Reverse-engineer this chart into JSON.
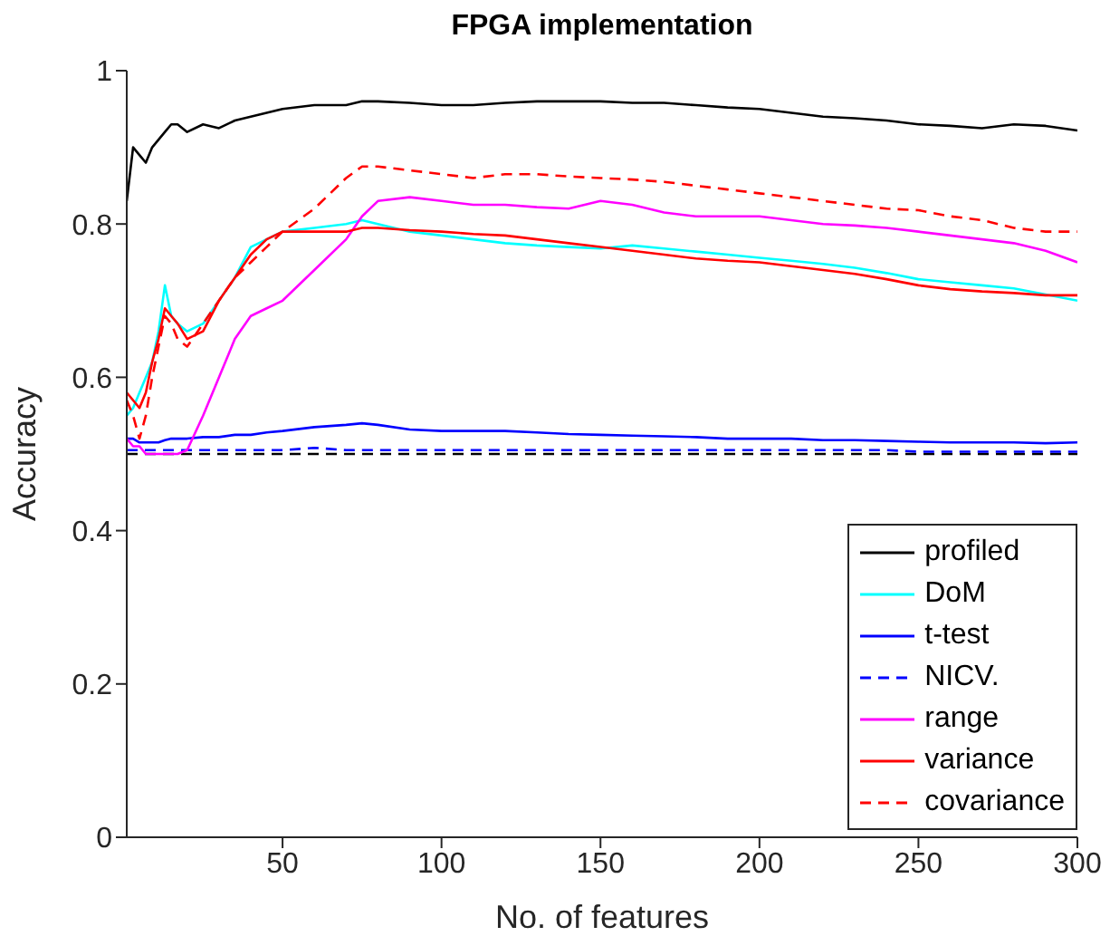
{
  "chart_data": {
    "type": "line",
    "title": "FPGA implementation",
    "xlabel": "No. of features",
    "ylabel": "Accuracy",
    "x": [
      1,
      3,
      5,
      7,
      9,
      11,
      13,
      15,
      17,
      20,
      25,
      30,
      35,
      40,
      45,
      50,
      60,
      70,
      75,
      80,
      90,
      100,
      110,
      120,
      130,
      140,
      150,
      160,
      170,
      180,
      190,
      200,
      210,
      220,
      230,
      240,
      250,
      260,
      270,
      280,
      290,
      300
    ],
    "xlim": [
      1,
      300
    ],
    "xticks": [
      50,
      100,
      150,
      200,
      250,
      300
    ],
    "ylim": [
      0,
      1
    ],
    "yticks": [
      0,
      0.2,
      0.4,
      0.6,
      0.8,
      1
    ],
    "grid": false,
    "legend": "bottom right",
    "marker": "none",
    "series": [
      {
        "name": "profiled",
        "color": "#000000",
        "line_style": "solid",
        "values": [
          0.83,
          0.9,
          0.89,
          0.88,
          0.9,
          0.91,
          0.92,
          0.93,
          0.93,
          0.92,
          0.93,
          0.925,
          0.935,
          0.94,
          0.945,
          0.95,
          0.955,
          0.955,
          0.96,
          0.96,
          0.958,
          0.955,
          0.955,
          0.958,
          0.96,
          0.96,
          0.96,
          0.958,
          0.958,
          0.955,
          0.952,
          0.95,
          0.945,
          0.94,
          0.938,
          0.935,
          0.93,
          0.928,
          0.925,
          0.93,
          0.928,
          0.922
        ]
      },
      {
        "name": "DoM",
        "color": "#00ffff",
        "line_style": "solid",
        "values": [
          0.55,
          0.56,
          0.58,
          0.6,
          0.62,
          0.66,
          0.72,
          0.68,
          0.67,
          0.66,
          0.67,
          0.7,
          0.73,
          0.77,
          0.78,
          0.79,
          0.795,
          0.8,
          0.805,
          0.8,
          0.79,
          0.785,
          0.78,
          0.775,
          0.772,
          0.77,
          0.768,
          0.772,
          0.768,
          0.764,
          0.76,
          0.756,
          0.752,
          0.748,
          0.743,
          0.736,
          0.728,
          0.724,
          0.72,
          0.716,
          0.708,
          0.7
        ]
      },
      {
        "name": "t-test",
        "color": "#0000ff",
        "line_style": "solid",
        "values": [
          0.52,
          0.52,
          0.515,
          0.515,
          0.515,
          0.515,
          0.518,
          0.52,
          0.52,
          0.52,
          0.522,
          0.522,
          0.525,
          0.525,
          0.528,
          0.53,
          0.535,
          0.538,
          0.54,
          0.538,
          0.532,
          0.53,
          0.53,
          0.53,
          0.528,
          0.526,
          0.525,
          0.524,
          0.523,
          0.522,
          0.52,
          0.52,
          0.52,
          0.518,
          0.518,
          0.517,
          0.516,
          0.515,
          0.515,
          0.515,
          0.514,
          0.515
        ]
      },
      {
        "name": "NICV.",
        "color": "#0000ff",
        "line_style": "dashed",
        "values": [
          0.505,
          0.505,
          0.505,
          0.505,
          0.505,
          0.505,
          0.505,
          0.505,
          0.505,
          0.505,
          0.505,
          0.505,
          0.505,
          0.505,
          0.505,
          0.505,
          0.508,
          0.505,
          0.505,
          0.505,
          0.505,
          0.505,
          0.505,
          0.505,
          0.505,
          0.505,
          0.505,
          0.505,
          0.505,
          0.505,
          0.505,
          0.505,
          0.505,
          0.505,
          0.505,
          0.505,
          0.503,
          0.503,
          0.503,
          0.503,
          0.503,
          0.503
        ]
      },
      {
        "name": "range",
        "color": "#ff00ff",
        "line_style": "solid",
        "values": [
          0.52,
          0.51,
          0.51,
          0.5,
          0.5,
          0.5,
          0.5,
          0.5,
          0.5,
          0.505,
          0.55,
          0.6,
          0.65,
          0.68,
          0.69,
          0.7,
          0.74,
          0.78,
          0.81,
          0.83,
          0.835,
          0.83,
          0.825,
          0.825,
          0.822,
          0.82,
          0.83,
          0.825,
          0.815,
          0.81,
          0.81,
          0.81,
          0.805,
          0.8,
          0.798,
          0.795,
          0.79,
          0.785,
          0.78,
          0.775,
          0.765,
          0.75
        ]
      },
      {
        "name": "variance",
        "color": "#ff0000",
        "line_style": "solid",
        "values": [
          0.58,
          0.57,
          0.56,
          0.58,
          0.62,
          0.65,
          0.69,
          0.68,
          0.67,
          0.65,
          0.66,
          0.7,
          0.73,
          0.76,
          0.78,
          0.79,
          0.79,
          0.79,
          0.795,
          0.795,
          0.792,
          0.79,
          0.787,
          0.785,
          0.78,
          0.775,
          0.77,
          0.765,
          0.76,
          0.755,
          0.752,
          0.75,
          0.745,
          0.74,
          0.735,
          0.728,
          0.72,
          0.715,
          0.712,
          0.71,
          0.707,
          0.707
        ]
      },
      {
        "name": "covariance",
        "color": "#ff0000",
        "line_style": "dashed",
        "values": [
          0.57,
          0.55,
          0.52,
          0.55,
          0.6,
          0.64,
          0.68,
          0.67,
          0.65,
          0.64,
          0.67,
          0.7,
          0.73,
          0.75,
          0.77,
          0.79,
          0.82,
          0.86,
          0.875,
          0.875,
          0.87,
          0.865,
          0.86,
          0.865,
          0.865,
          0.862,
          0.86,
          0.858,
          0.855,
          0.85,
          0.845,
          0.84,
          0.835,
          0.83,
          0.825,
          0.82,
          0.818,
          0.81,
          0.805,
          0.795,
          0.79,
          0.79
        ]
      }
    ],
    "ref_lines": [
      {
        "axis": "y",
        "value": 0.5,
        "color": "#000000",
        "line_style": "dashed"
      }
    ]
  }
}
